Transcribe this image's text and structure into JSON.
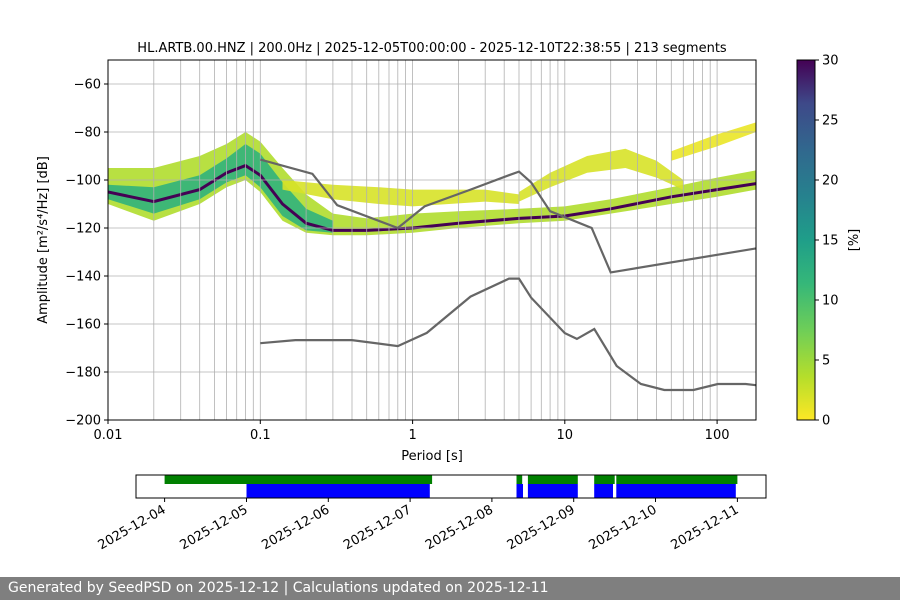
{
  "footer": {
    "text": "Generated by SeedPSD on 2025-12-12 | Calculations updated on 2025-12-11"
  },
  "chart_data": {
    "type": "heatmap",
    "title": "HL.ARTB.00.HNZ | 200.0Hz | 2025-12-05T00:00:00 - 2025-12-10T22:38:55 | 213 segments",
    "xlabel": "Period [s]",
    "ylabel": "Amplitude [m²/s⁴/Hz] [dB]",
    "xscale": "log",
    "xlim": [
      0.01,
      180
    ],
    "ylim": [
      -200,
      -50
    ],
    "xticks": [
      0.01,
      0.1,
      1,
      10,
      100
    ],
    "xticklabels": [
      "0.01",
      "0.1",
      "1",
      "10",
      "100"
    ],
    "yticks": [
      -200,
      -180,
      -160,
      -140,
      -120,
      -100,
      -80,
      -60
    ],
    "yticklabels": [
      "−200",
      "−180",
      "−160",
      "−140",
      "−120",
      "−100",
      "−80",
      "−60"
    ],
    "grid": true,
    "colorbar": {
      "label": "[%]",
      "range": [
        0,
        30
      ],
      "ticks": [
        0,
        5,
        10,
        15,
        20,
        25,
        30
      ],
      "ticklabels": [
        "0",
        "5",
        "10",
        "15",
        "20",
        "25",
        "30"
      ],
      "colormap": "viridis_r"
    },
    "noise_models": [
      {
        "name": "NHNM",
        "color": "#666666",
        "points": [
          [
            0.1,
            -91.5
          ],
          [
            0.22,
            -97.4
          ],
          [
            0.32,
            -110.5
          ],
          [
            0.8,
            -120
          ],
          [
            1.2,
            -111
          ],
          [
            2.4,
            -104
          ],
          [
            4.3,
            -98
          ],
          [
            5,
            -96.5
          ],
          [
            6,
            -101
          ],
          [
            8,
            -113
          ],
          [
            15,
            -120
          ],
          [
            20,
            -138.5
          ],
          [
            180,
            -128.5
          ]
        ]
      },
      {
        "name": "NLNM",
        "color": "#666666",
        "points": [
          [
            0.1,
            -168
          ],
          [
            0.17,
            -166.7
          ],
          [
            0.4,
            -166.7
          ],
          [
            0.8,
            -169.2
          ],
          [
            1.24,
            -163.7
          ],
          [
            2.4,
            -148.6
          ],
          [
            4.3,
            -141.1
          ],
          [
            5,
            -141.1
          ],
          [
            6,
            -149
          ],
          [
            10,
            -163.8
          ],
          [
            12,
            -166.2
          ],
          [
            15.6,
            -162.1
          ],
          [
            21.9,
            -177.5
          ],
          [
            31.6,
            -185
          ],
          [
            45,
            -187.5
          ],
          [
            70,
            -187.5
          ],
          [
            101,
            -185
          ],
          [
            154,
            -185
          ],
          [
            180,
            -185.5
          ]
        ]
      }
    ],
    "psd_mode": {
      "name": "mode",
      "points": [
        [
          0.01,
          -105
        ],
        [
          0.02,
          -109
        ],
        [
          0.04,
          -104
        ],
        [
          0.06,
          -97
        ],
        [
          0.08,
          -94
        ],
        [
          0.1,
          -98
        ],
        [
          0.14,
          -110
        ],
        [
          0.2,
          -118
        ],
        [
          0.3,
          -121
        ],
        [
          0.5,
          -121
        ],
        [
          1,
          -120
        ],
        [
          2,
          -118
        ],
        [
          5,
          -116
        ],
        [
          10,
          -115
        ],
        [
          20,
          -112
        ],
        [
          50,
          -107
        ],
        [
          100,
          -104
        ],
        [
          180,
          -101.5
        ]
      ]
    },
    "psd_bands": [
      {
        "name": "main",
        "pct": 4,
        "points": [
          [
            0.01,
            -95,
            -110
          ],
          [
            0.02,
            -95,
            -117
          ],
          [
            0.04,
            -90,
            -110
          ],
          [
            0.06,
            -85,
            -103
          ],
          [
            0.08,
            -80,
            -100
          ],
          [
            0.1,
            -84,
            -105
          ],
          [
            0.14,
            -95,
            -117
          ],
          [
            0.2,
            -106,
            -122
          ],
          [
            0.3,
            -114,
            -123
          ],
          [
            0.5,
            -116,
            -123
          ],
          [
            1,
            -114,
            -122
          ],
          [
            2,
            -113,
            -120
          ],
          [
            5,
            -112,
            -118
          ],
          [
            10,
            -111,
            -117
          ],
          [
            20,
            -108,
            -114
          ],
          [
            50,
            -103,
            -110
          ],
          [
            100,
            -99,
            -107
          ],
          [
            180,
            -96,
            -104
          ]
        ]
      },
      {
        "name": "core",
        "pct": 12,
        "points": [
          [
            0.01,
            -102,
            -108
          ],
          [
            0.02,
            -103,
            -114
          ],
          [
            0.04,
            -98,
            -108
          ],
          [
            0.06,
            -91,
            -101
          ],
          [
            0.08,
            -85,
            -98
          ],
          [
            0.1,
            -89,
            -103
          ],
          [
            0.14,
            -101,
            -115
          ],
          [
            0.2,
            -112,
            -121
          ],
          [
            0.3,
            -117,
            -122
          ]
        ]
      },
      {
        "name": "upper",
        "pct": 2,
        "points": [
          [
            0.14,
            -100,
            -104
          ],
          [
            0.3,
            -102,
            -108
          ],
          [
            0.6,
            -103,
            -110
          ],
          [
            1,
            -104,
            -111
          ],
          [
            3,
            -104,
            -109
          ],
          [
            5,
            -106,
            -110
          ]
        ]
      },
      {
        "name": "hump",
        "pct": 2,
        "points": [
          [
            5,
            -105,
            -109
          ],
          [
            8,
            -97,
            -103
          ],
          [
            14,
            -90,
            -97
          ],
          [
            25,
            -87,
            -95
          ],
          [
            40,
            -92,
            -99
          ],
          [
            60,
            -100,
            -104
          ]
        ]
      },
      {
        "name": "top",
        "pct": 1,
        "points": [
          [
            50,
            -88,
            -92
          ],
          [
            100,
            -81,
            -86
          ],
          [
            180,
            -76,
            -80
          ]
        ]
      }
    ]
  },
  "timeline": {
    "dates": [
      "2025-12-04",
      "2025-12-05",
      "2025-12-06",
      "2025-12-07",
      "2025-12-08",
      "2025-12-09",
      "2025-12-10",
      "2025-12-11"
    ],
    "xlim": [
      3.65,
      11.35
    ],
    "green": [
      [
        4.0,
        7.27
      ],
      [
        8.3,
        8.37
      ],
      [
        8.44,
        9.05
      ],
      [
        9.25,
        9.5
      ],
      [
        9.52,
        11.0
      ]
    ],
    "blue": [
      [
        5.0,
        7.24
      ],
      [
        5.97,
        6.0
      ],
      [
        8.3,
        8.38
      ],
      [
        8.44,
        9.05
      ],
      [
        9.25,
        9.48
      ],
      [
        9.52,
        10.98
      ]
    ],
    "colors": {
      "green": "#008000",
      "blue": "#0000ff"
    }
  }
}
